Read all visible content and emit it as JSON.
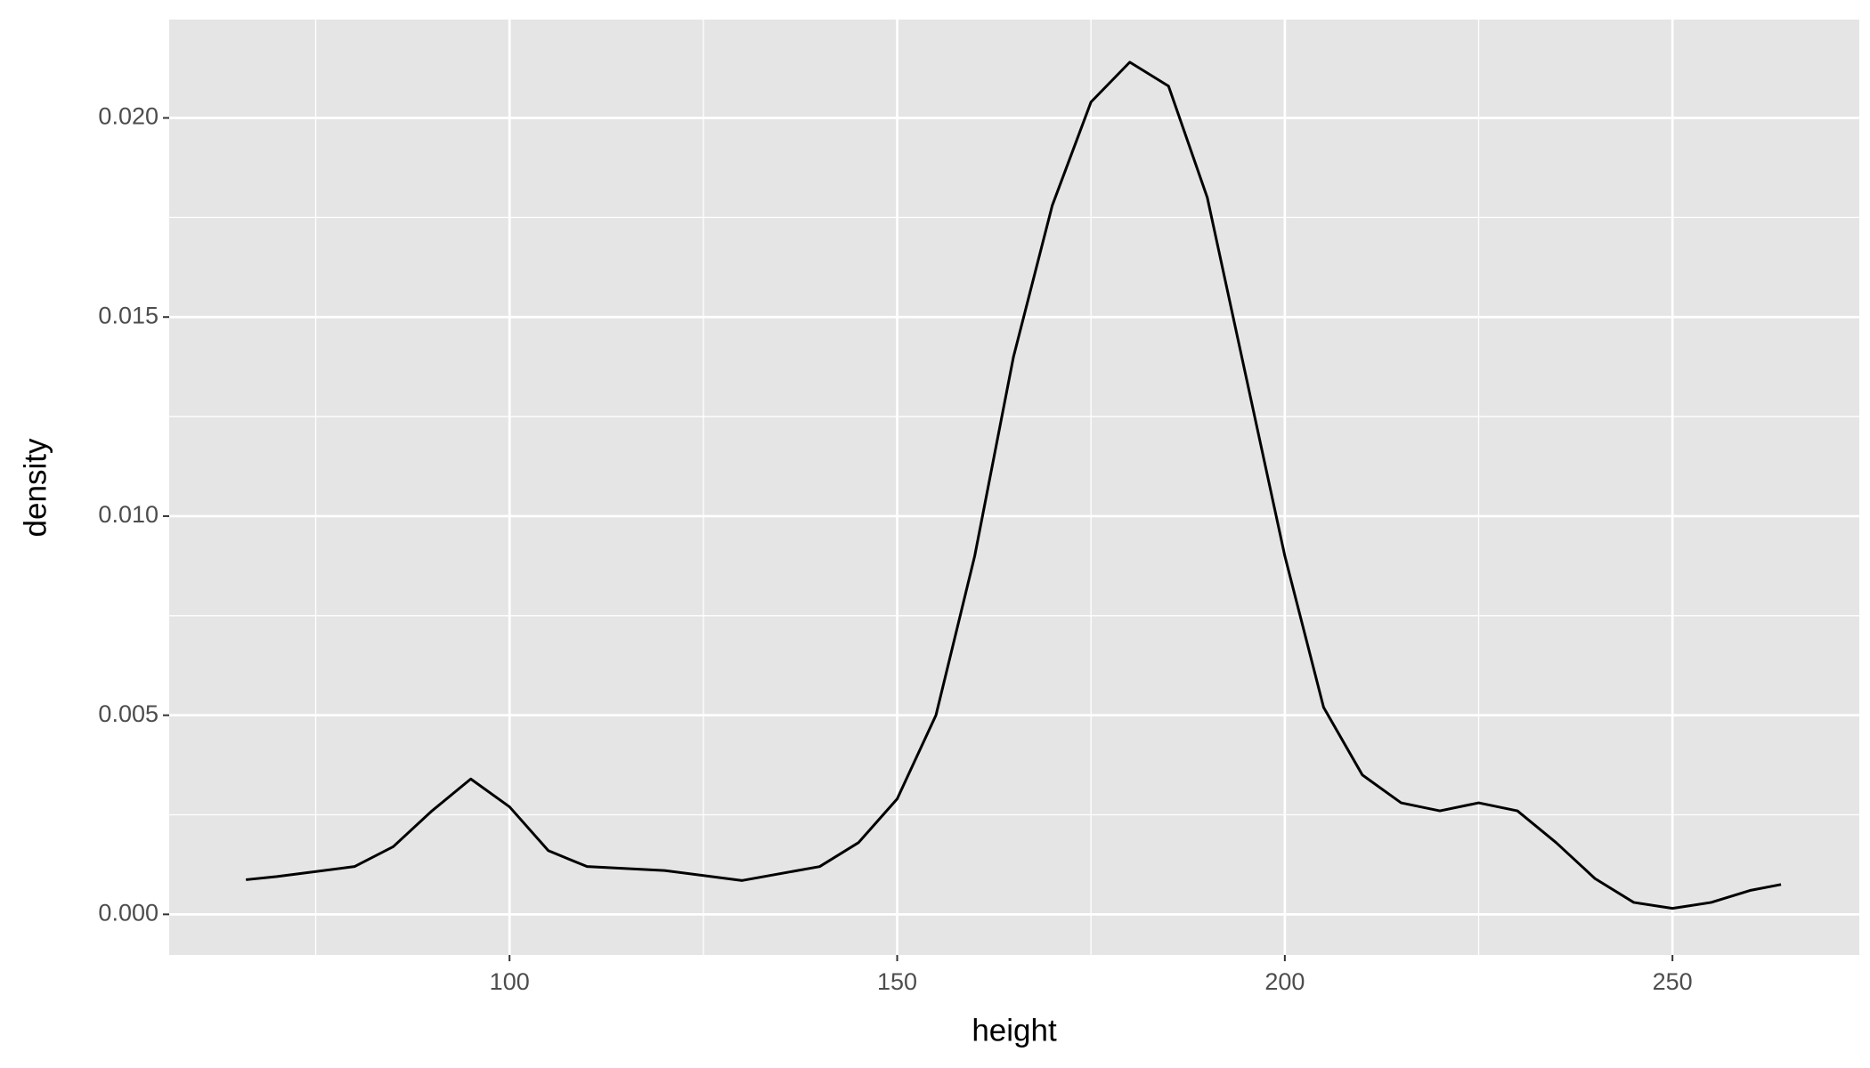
{
  "chart_data": {
    "type": "line",
    "xlabel": "height",
    "ylabel": "density",
    "x": [
      66,
      70,
      80,
      85,
      90,
      95,
      100,
      105,
      110,
      120,
      130,
      140,
      145,
      150,
      155,
      160,
      165,
      170,
      175,
      180,
      185,
      190,
      195,
      200,
      205,
      210,
      215,
      220,
      225,
      230,
      235,
      240,
      245,
      250,
      255,
      260,
      264
    ],
    "series": [
      {
        "color": "#000000",
        "values": [
          0.00087,
          0.00095,
          0.0012,
          0.0017,
          0.0026,
          0.0034,
          0.0027,
          0.0016,
          0.0012,
          0.0011,
          0.00085,
          0.0012,
          0.0018,
          0.0029,
          0.005,
          0.009,
          0.014,
          0.0178,
          0.0204,
          0.0214,
          0.0208,
          0.018,
          0.0135,
          0.009,
          0.0052,
          0.0035,
          0.0028,
          0.0026,
          0.0028,
          0.0026,
          0.0018,
          0.0009,
          0.0003,
          0.00015,
          0.0003,
          0.0006,
          0.00075
        ]
      }
    ],
    "xlim": [
      56.1,
      274.1
    ],
    "ylim": [
      -0.00102,
      0.02247
    ],
    "xticks": [
      100,
      150,
      200,
      250
    ],
    "yticks": [
      {
        "value": 0,
        "label": "0.000"
      },
      {
        "value": 0.005,
        "label": "0.005"
      },
      {
        "value": 0.01,
        "label": "0.010"
      },
      {
        "value": 0.015,
        "label": "0.015"
      },
      {
        "value": 0.02,
        "label": "0.020"
      }
    ],
    "xminor": [
      75,
      125,
      175,
      225
    ],
    "yminor": [
      0.0025,
      0.0075,
      0.0125,
      0.0175
    ],
    "grid": true
  }
}
